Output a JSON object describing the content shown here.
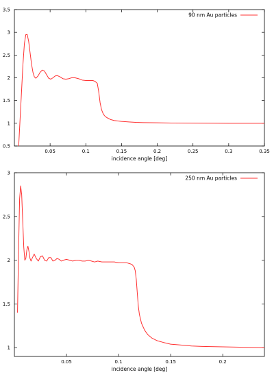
{
  "chart_data": [
    {
      "type": "line",
      "title": "",
      "xlabel": "incidence angle [deg]",
      "ylabel": "",
      "xlim": [
        0,
        0.35
      ],
      "ylim": [
        0.5,
        3.5
      ],
      "xticks": [
        "0.05",
        "0.1",
        "0.15",
        "0.2",
        "0.25",
        "0.3",
        "0.35"
      ],
      "yticks": [
        "0.5",
        "1",
        "1.5",
        "2",
        "2.5",
        "3",
        "3.5"
      ],
      "grid": false,
      "legend": "top-right",
      "color": "#ff3030",
      "series": [
        {
          "name": "90 nm Au particles",
          "x": [
            0.006,
            0.008,
            0.01,
            0.012,
            0.014,
            0.016,
            0.018,
            0.02,
            0.022,
            0.024,
            0.026,
            0.028,
            0.03,
            0.033,
            0.036,
            0.039,
            0.042,
            0.045,
            0.048,
            0.051,
            0.054,
            0.057,
            0.06,
            0.064,
            0.068,
            0.072,
            0.076,
            0.08,
            0.085,
            0.09,
            0.095,
            0.1,
            0.105,
            0.11,
            0.113,
            0.116,
            0.118,
            0.12,
            0.122,
            0.124,
            0.126,
            0.128,
            0.13,
            0.135,
            0.14,
            0.15,
            0.16,
            0.17,
            0.18,
            0.2,
            0.22,
            0.25,
            0.28,
            0.3,
            0.32,
            0.35
          ],
          "y": [
            0.5,
            1.1,
            1.7,
            2.3,
            2.75,
            2.95,
            2.95,
            2.8,
            2.55,
            2.3,
            2.12,
            2.02,
            1.99,
            2.04,
            2.12,
            2.17,
            2.15,
            2.07,
            1.99,
            1.97,
            2.0,
            2.04,
            2.05,
            2.02,
            1.98,
            1.97,
            1.98,
            2.0,
            2.0,
            1.98,
            1.95,
            1.94,
            1.94,
            1.94,
            1.92,
            1.88,
            1.7,
            1.45,
            1.3,
            1.22,
            1.17,
            1.14,
            1.12,
            1.08,
            1.06,
            1.04,
            1.03,
            1.02,
            1.015,
            1.01,
            1.005,
            1.003,
            1.001,
            1.0,
            1.0,
            1.0
          ]
        }
      ]
    },
    {
      "type": "line",
      "title": "",
      "xlabel": "incidence angle [deg]",
      "ylabel": "",
      "xlim": [
        0,
        0.24
      ],
      "ylim": [
        0.9,
        3.0
      ],
      "xticks": [
        "0.05",
        "0.1",
        "0.15",
        "0.2"
      ],
      "yticks": [
        "1",
        "1.5",
        "2",
        "2.5",
        "3"
      ],
      "grid": false,
      "legend": "top-right",
      "color": "#ff3030",
      "series": [
        {
          "name": "250 nm Au particles",
          "x": [
            0.003,
            0.004,
            0.005,
            0.006,
            0.007,
            0.008,
            0.009,
            0.01,
            0.011,
            0.012,
            0.013,
            0.014,
            0.015,
            0.016,
            0.017,
            0.019,
            0.021,
            0.023,
            0.025,
            0.027,
            0.029,
            0.031,
            0.033,
            0.035,
            0.037,
            0.039,
            0.041,
            0.043,
            0.045,
            0.047,
            0.05,
            0.053,
            0.056,
            0.059,
            0.062,
            0.065,
            0.068,
            0.071,
            0.074,
            0.077,
            0.08,
            0.084,
            0.088,
            0.092,
            0.096,
            0.1,
            0.104,
            0.108,
            0.111,
            0.113,
            0.115,
            0.116,
            0.117,
            0.118,
            0.119,
            0.12,
            0.122,
            0.125,
            0.128,
            0.132,
            0.137,
            0.143,
            0.15,
            0.16,
            0.17,
            0.18,
            0.2,
            0.22,
            0.24
          ],
          "y": [
            1.4,
            2.1,
            2.7,
            2.85,
            2.75,
            2.45,
            2.15,
            2.0,
            2.02,
            2.12,
            2.16,
            2.1,
            2.02,
            1.99,
            2.02,
            2.07,
            2.02,
            1.99,
            2.04,
            2.05,
            2.0,
            1.99,
            2.03,
            2.03,
            1.99,
            2.0,
            2.02,
            2.01,
            1.99,
            2.0,
            2.01,
            2.0,
            1.99,
            2.0,
            2.0,
            1.99,
            1.99,
            2.0,
            1.99,
            1.98,
            1.99,
            1.98,
            1.98,
            1.98,
            1.98,
            1.97,
            1.97,
            1.97,
            1.96,
            1.95,
            1.92,
            1.88,
            1.78,
            1.62,
            1.47,
            1.38,
            1.28,
            1.2,
            1.15,
            1.11,
            1.08,
            1.06,
            1.04,
            1.03,
            1.02,
            1.015,
            1.01,
            1.005,
            1.0
          ]
        }
      ]
    }
  ]
}
